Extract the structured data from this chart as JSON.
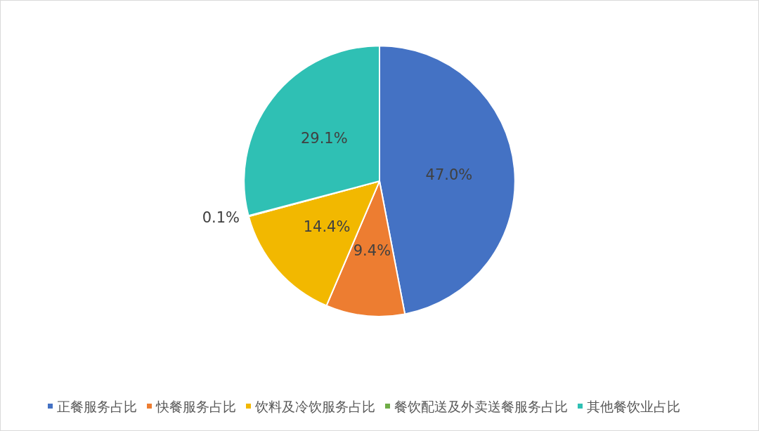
{
  "chart_data": {
    "type": "pie",
    "categories": [
      "正餐服务占比",
      "快餐服务占比",
      "饮料及冷饮服务占比",
      "餐饮配送及外卖送餐服务占比",
      "其他餐饮业占比"
    ],
    "values": [
      47.0,
      9.4,
      14.4,
      0.1,
      29.1
    ],
    "colors": [
      "#4472c4",
      "#ed7d31",
      "#f2b800",
      "#70ad47",
      "#2fc0b4"
    ],
    "value_labels": [
      "47.0%",
      "9.4%",
      "14.4%",
      "0.1%",
      "29.1%"
    ],
    "legend": "bottom"
  }
}
